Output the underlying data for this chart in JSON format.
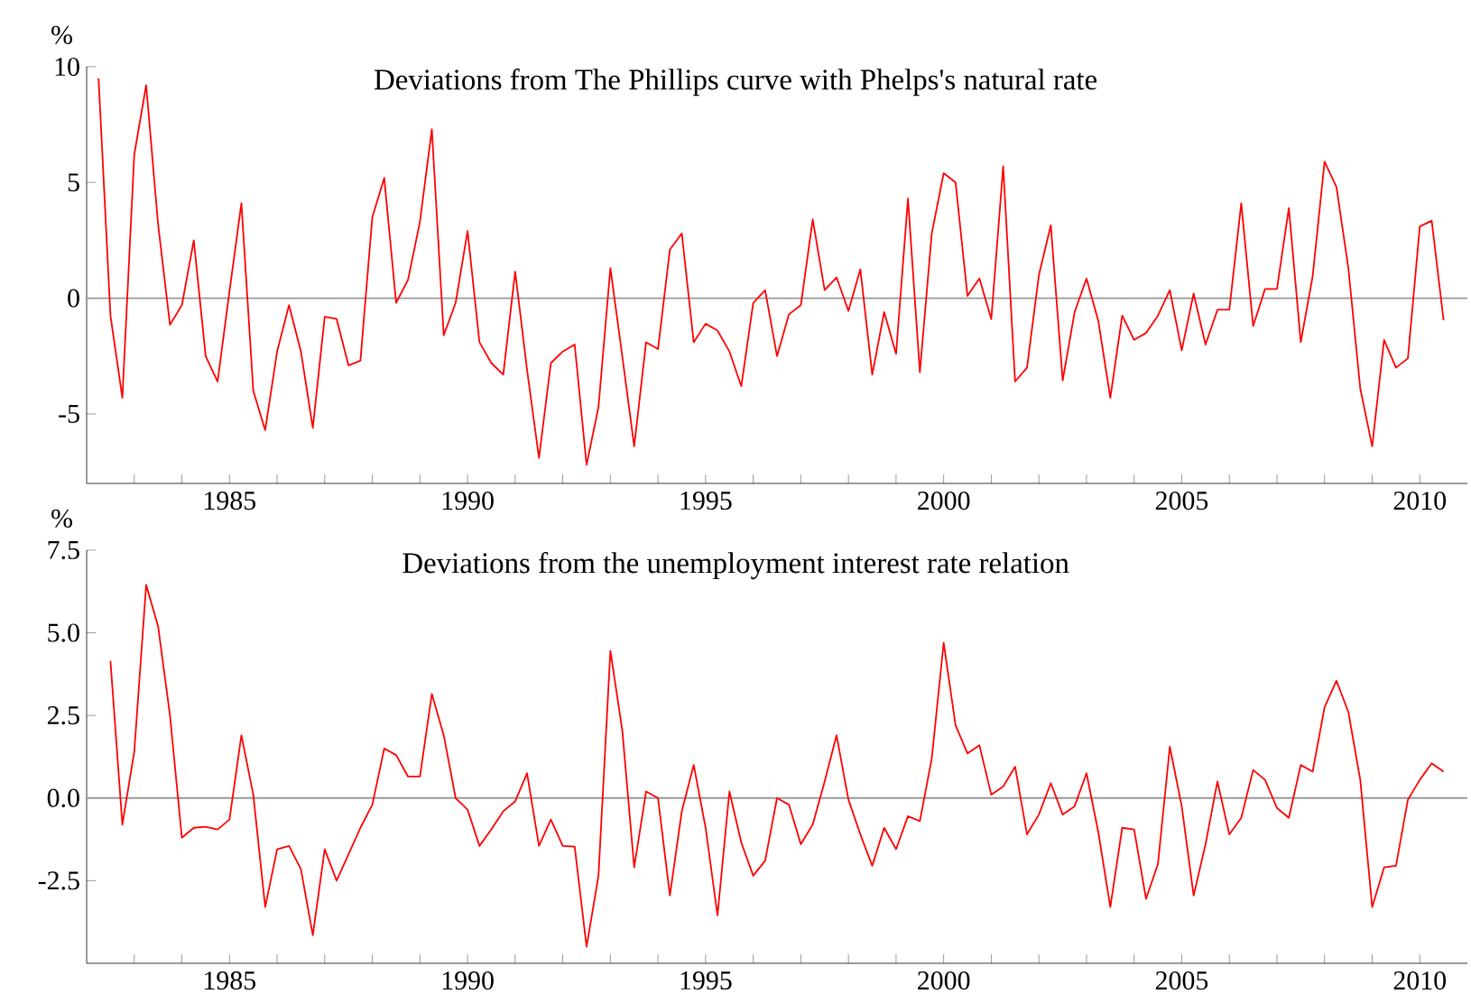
{
  "chart_data": [
    {
      "type": "line",
      "title": "Deviations from The Phillips curve with Phelps's natural rate",
      "ylabel": "%",
      "marker": "none",
      "line_style": "solid",
      "xlim": [
        1982,
        2011
      ],
      "ylim": [
        -8,
        10
      ],
      "xticks": [
        {
          "value": 1983,
          "label": null
        },
        {
          "value": 1984,
          "label": null
        },
        1985,
        {
          "value": 1986,
          "label": null
        },
        {
          "value": 1987,
          "label": null
        },
        {
          "value": 1988,
          "label": null
        },
        {
          "value": 1989,
          "label": null
        },
        1990,
        {
          "value": 1991,
          "label": null
        },
        {
          "value": 1992,
          "label": null
        },
        {
          "value": 1993,
          "label": null
        },
        {
          "value": 1994,
          "label": null
        },
        1995,
        {
          "value": 1996,
          "label": null
        },
        {
          "value": 1997,
          "label": null
        },
        {
          "value": 1998,
          "label": null
        },
        {
          "value": 1999,
          "label": null
        },
        2000,
        {
          "value": 2001,
          "label": null
        },
        {
          "value": 2002,
          "label": null
        },
        {
          "value": 2003,
          "label": null
        },
        {
          "value": 2004,
          "label": null
        },
        2005,
        {
          "value": 2006,
          "label": null
        },
        {
          "value": 2007,
          "label": null
        },
        {
          "value": 2008,
          "label": null
        },
        {
          "value": 2009,
          "label": null
        },
        2010
      ],
      "yticks": [
        -5,
        0,
        5,
        10
      ],
      "ref_lines": [
        {
          "axis": "y",
          "value": 0,
          "color": "#999999"
        }
      ],
      "series": [
        {
          "color": "#ff0000",
          "x": [
            1982.25,
            1982.5,
            1982.75,
            1983,
            1983.25,
            1983.5,
            1983.75,
            1984,
            1984.25,
            1984.5,
            1984.75,
            1985,
            1985.25,
            1985.5,
            1985.75,
            1986,
            1986.25,
            1986.5,
            1986.75,
            1987,
            1987.25,
            1987.5,
            1987.75,
            1988,
            1988.25,
            1988.5,
            1988.75,
            1989,
            1989.25,
            1989.5,
            1989.75,
            1990,
            1990.25,
            1990.5,
            1990.75,
            1991,
            1991.25,
            1991.5,
            1991.75,
            1992,
            1992.25,
            1992.5,
            1992.75,
            1993,
            1993.25,
            1993.5,
            1993.75,
            1994,
            1994.25,
            1994.5,
            1994.75,
            1995,
            1995.25,
            1995.5,
            1995.75,
            1996,
            1996.25,
            1996.5,
            1996.75,
            1997,
            1997.25,
            1997.5,
            1997.75,
            1998,
            1998.25,
            1998.5,
            1998.75,
            1999,
            1999.25,
            1999.5,
            1999.75,
            2000,
            2000.25,
            2000.5,
            2000.75,
            2001,
            2001.25,
            2001.5,
            2001.75,
            2002,
            2002.25,
            2002.5,
            2002.75,
            2003,
            2003.25,
            2003.5,
            2003.75,
            2004,
            2004.25,
            2004.5,
            2004.75,
            2005,
            2005.25,
            2005.5,
            2005.75,
            2006,
            2006.25,
            2006.5,
            2006.75,
            2007,
            2007.25,
            2007.5,
            2007.75,
            2008,
            2008.25,
            2008.5,
            2008.75,
            2009,
            2009.25,
            2009.5,
            2009.75,
            2010,
            2010.25,
            2010.5
          ],
          "values": [
            9.5,
            -0.75,
            -4.3,
            6.2,
            9.2,
            3.2,
            -1.15,
            -0.3,
            2.5,
            -2.5,
            -3.6,
            0.3,
            4.1,
            -4.0,
            -5.7,
            -2.3,
            -0.3,
            -2.3,
            -5.6,
            -0.8,
            -0.9,
            -2.9,
            -2.7,
            3.5,
            5.2,
            -0.2,
            0.8,
            3.3,
            7.3,
            -1.6,
            -0.2,
            2.9,
            -1.9,
            -2.8,
            -3.3,
            1.15,
            -3.1,
            -6.9,
            -2.8,
            -2.3,
            -2.0,
            -7.2,
            -4.7,
            1.3,
            -2.5,
            -6.4,
            -1.9,
            -2.2,
            2.1,
            2.8,
            -1.9,
            -1.1,
            -1.4,
            -2.3,
            -3.8,
            -0.2,
            0.35,
            -2.5,
            -0.7,
            -0.3,
            3.4,
            0.35,
            0.9,
            -0.55,
            1.25,
            -3.3,
            -0.6,
            -2.4,
            4.3,
            -3.2,
            2.8,
            5.4,
            5.0,
            0.1,
            0.85,
            -0.9,
            5.7,
            -3.6,
            -3.0,
            1.0,
            3.15,
            -3.55,
            -0.6,
            0.85,
            -1.0,
            -4.3,
            -0.75,
            -1.8,
            -1.5,
            -0.75,
            0.35,
            -2.25,
            0.2,
            -2.0,
            -0.5,
            -0.5,
            4.1,
            -1.2,
            0.4,
            0.4,
            3.9,
            -1.9,
            0.95,
            5.9,
            4.8,
            1.3,
            -3.9,
            -6.4,
            -1.8,
            -3.0,
            -2.6,
            3.1,
            3.35,
            -0.95
          ]
        }
      ]
    },
    {
      "type": "line",
      "title": "Deviations from the unemployment interest rate relation",
      "ylabel": "%",
      "marker": "none",
      "line_style": "solid",
      "xlim": [
        1982,
        2011
      ],
      "ylim": [
        -5,
        7.5
      ],
      "xticks": [
        {
          "value": 1983,
          "label": null
        },
        {
          "value": 1984,
          "label": null
        },
        1985,
        {
          "value": 1986,
          "label": null
        },
        {
          "value": 1987,
          "label": null
        },
        {
          "value": 1988,
          "label": null
        },
        {
          "value": 1989,
          "label": null
        },
        1990,
        {
          "value": 1991,
          "label": null
        },
        {
          "value": 1992,
          "label": null
        },
        {
          "value": 1993,
          "label": null
        },
        {
          "value": 1994,
          "label": null
        },
        1995,
        {
          "value": 1996,
          "label": null
        },
        {
          "value": 1997,
          "label": null
        },
        {
          "value": 1998,
          "label": null
        },
        {
          "value": 1999,
          "label": null
        },
        2000,
        {
          "value": 2001,
          "label": null
        },
        {
          "value": 2002,
          "label": null
        },
        {
          "value": 2003,
          "label": null
        },
        {
          "value": 2004,
          "label": null
        },
        2005,
        {
          "value": 2006,
          "label": null
        },
        {
          "value": 2007,
          "label": null
        },
        {
          "value": 2008,
          "label": null
        },
        {
          "value": 2009,
          "label": null
        },
        2010
      ],
      "yticks": [
        {
          "value": -2.5,
          "label": "-2.5"
        },
        {
          "value": 0,
          "label": "0.0"
        },
        {
          "value": 2.5,
          "label": "2.5"
        },
        {
          "value": 5,
          "label": "5.0"
        },
        {
          "value": 7.5,
          "label": "7.5"
        }
      ],
      "ref_lines": [
        {
          "axis": "y",
          "value": 0,
          "color": "#999999"
        }
      ],
      "series": [
        {
          "color": "#ff0000",
          "x": [
            1982.5,
            1982.75,
            1983,
            1983.25,
            1983.5,
            1983.75,
            1984,
            1984.25,
            1984.5,
            1984.75,
            1985,
            1985.25,
            1985.5,
            1985.75,
            1986,
            1986.25,
            1986.5,
            1986.75,
            1987,
            1987.25,
            1987.5,
            1987.75,
            1988,
            1988.25,
            1988.5,
            1988.75,
            1989,
            1989.25,
            1989.5,
            1989.75,
            1990,
            1990.25,
            1990.5,
            1990.75,
            1991,
            1991.25,
            1991.5,
            1991.75,
            1992,
            1992.25,
            1992.5,
            1992.75,
            1993,
            1993.25,
            1993.5,
            1993.75,
            1994,
            1994.25,
            1994.5,
            1994.75,
            1995,
            1995.25,
            1995.5,
            1995.75,
            1996,
            1996.25,
            1996.5,
            1996.75,
            1997,
            1997.25,
            1997.5,
            1997.75,
            1998,
            1998.25,
            1998.5,
            1998.75,
            1999,
            1999.25,
            1999.5,
            1999.75,
            2000,
            2000.25,
            2000.5,
            2000.75,
            2001,
            2001.25,
            2001.5,
            2001.75,
            2002,
            2002.25,
            2002.5,
            2002.75,
            2003,
            2003.25,
            2003.5,
            2003.75,
            2004,
            2004.25,
            2004.5,
            2004.75,
            2005,
            2005.25,
            2005.5,
            2005.75,
            2006,
            2006.25,
            2006.5,
            2006.75,
            2007,
            2007.25,
            2007.5,
            2007.75,
            2008,
            2008.25,
            2008.5,
            2008.75,
            2009,
            2009.25,
            2009.5,
            2009.75,
            2010,
            2010.25,
            2010.5
          ],
          "values": [
            4.15,
            -0.8,
            1.4,
            6.45,
            5.2,
            2.5,
            -1.2,
            -0.9,
            -0.87,
            -0.95,
            -0.65,
            1.9,
            0.1,
            -3.3,
            -1.55,
            -1.45,
            -2.15,
            -4.15,
            -1.55,
            -2.5,
            -1.7,
            -0.9,
            -0.2,
            1.5,
            1.3,
            0.65,
            0.65,
            3.15,
            1.9,
            0.0,
            -0.35,
            -1.45,
            -0.95,
            -0.4,
            -0.1,
            0.75,
            -1.45,
            -0.65,
            -1.45,
            -1.47,
            -4.5,
            -2.35,
            4.45,
            2.05,
            -2.1,
            0.2,
            0.0,
            -2.95,
            -0.4,
            1.0,
            -0.9,
            -3.55,
            0.2,
            -1.35,
            -2.35,
            -1.9,
            0.0,
            -0.2,
            -1.4,
            -0.8,
            0.5,
            1.9,
            -0.05,
            -1.1,
            -2.05,
            -0.9,
            -1.55,
            -0.55,
            -0.7,
            1.2,
            4.7,
            2.2,
            1.35,
            1.6,
            0.1,
            0.35,
            0.95,
            -1.1,
            -0.5,
            0.45,
            -0.5,
            -0.25,
            0.75,
            -1.05,
            -3.3,
            -0.9,
            -0.95,
            -3.05,
            -2.0,
            1.55,
            -0.25,
            -2.95,
            -1.4,
            0.5,
            -1.1,
            -0.6,
            0.85,
            0.55,
            -0.3,
            -0.6,
            1.0,
            0.8,
            2.75,
            3.55,
            2.6,
            0.55,
            -3.3,
            -2.1,
            -2.05,
            -0.05,
            0.55,
            1.05,
            0.8
          ]
        }
      ]
    }
  ]
}
